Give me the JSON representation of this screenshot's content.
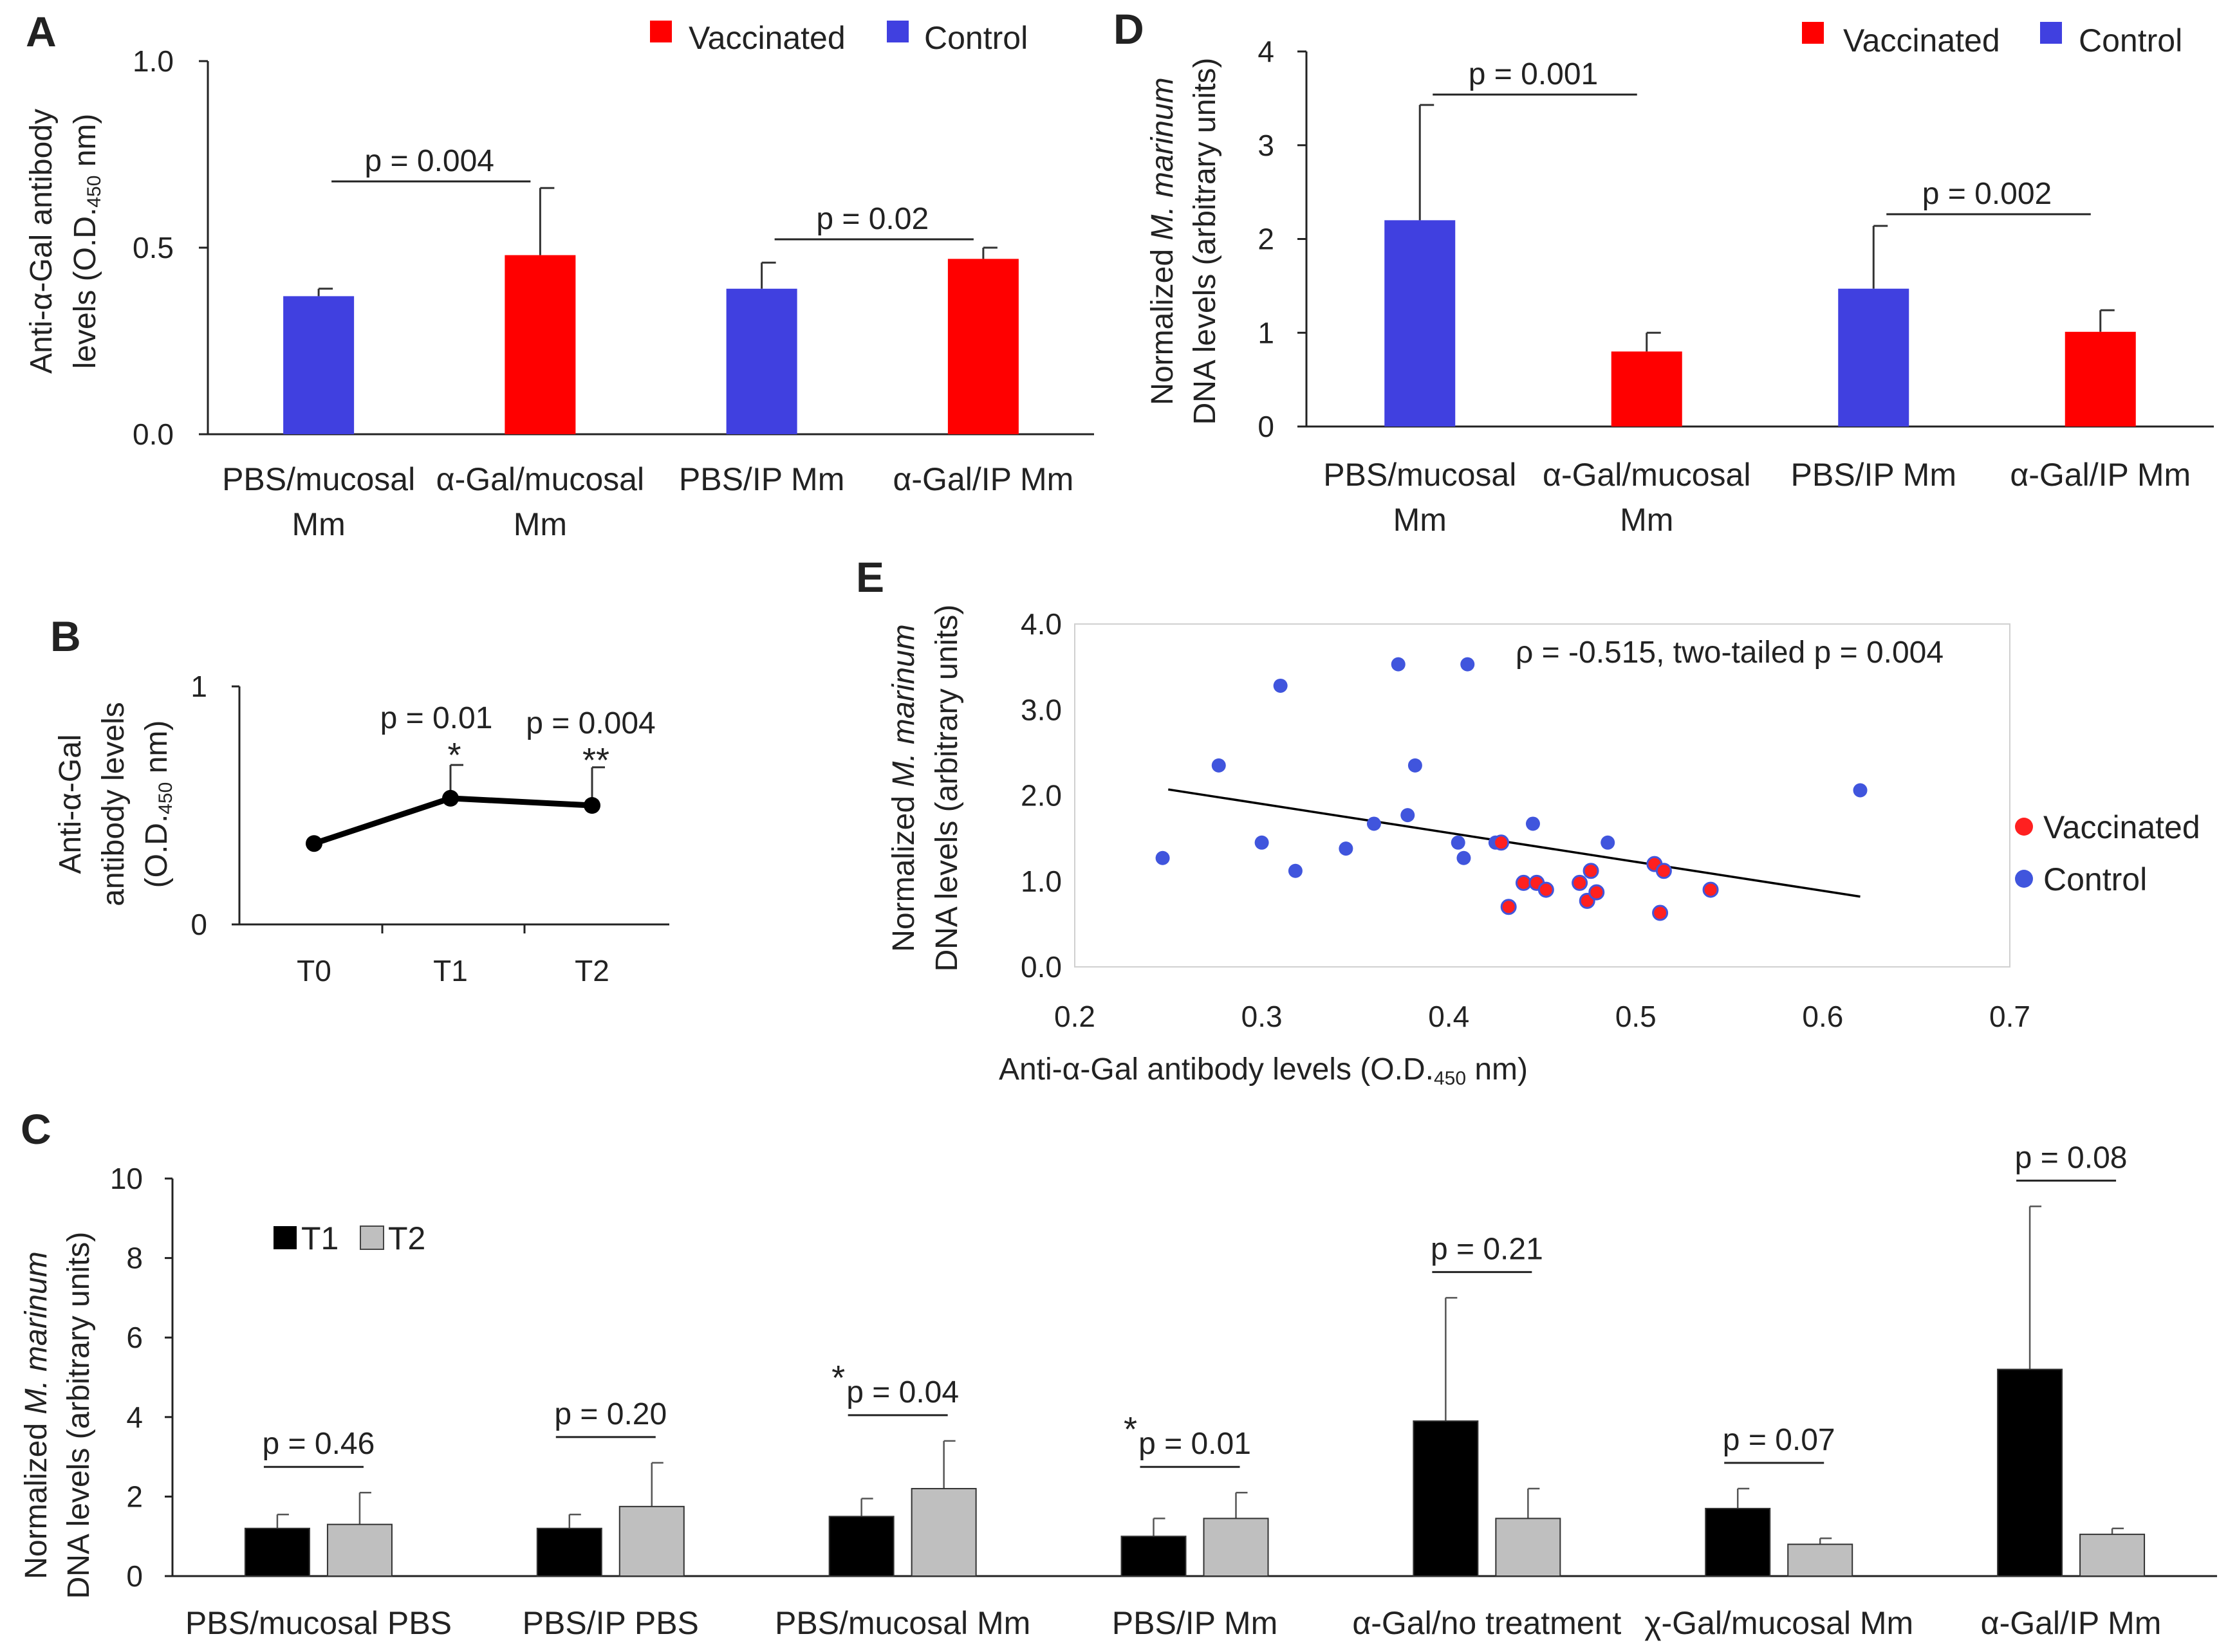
{
  "chart_data": [
    {
      "panel": "A",
      "type": "bar",
      "ylabel_line1": "Anti-α-Gal antibody",
      "ylabel_line2_pre": "levels (O.D.",
      "ylabel_line2_sub": "450",
      "ylabel_line2_post": " nm)",
      "ylim": [
        0,
        1.0
      ],
      "yticks": [
        "0.0",
        "0.5",
        "1.0"
      ],
      "legend": [
        {
          "label": "Vaccinated",
          "color": "#ff0000"
        },
        {
          "label": "Control",
          "color": "#4040e0"
        }
      ],
      "categories": [
        [
          "PBS/mucosal",
          "Mm"
        ],
        [
          "α-Gal/mucosal",
          "Mm"
        ],
        [
          "PBS/IP Mm"
        ],
        [
          "α-Gal/IP Mm"
        ]
      ],
      "values": [
        0.37,
        0.48,
        0.39,
        0.47
      ],
      "errors": [
        0.02,
        0.18,
        0.07,
        0.03
      ],
      "groups": [
        "Control",
        "Vaccinated",
        "Control",
        "Vaccinated"
      ],
      "comparisons": [
        {
          "label": "p = 0.004",
          "from": 0,
          "to": 1
        },
        {
          "label": "p = 0.02",
          "from": 2,
          "to": 3
        }
      ]
    },
    {
      "panel": "B",
      "type": "line",
      "ylabel_line1": "Anti-α-Gal",
      "ylabel_line2": "antibody levels",
      "ylabel_line3_pre": "(O.D.",
      "ylabel_line3_sub": "450",
      "ylabel_line3_post": " nm)",
      "ylim": [
        0,
        1
      ],
      "yticks": [
        "0",
        "1"
      ],
      "categories": [
        "T0",
        "T1",
        "T2"
      ],
      "values": [
        0.34,
        0.53,
        0.5
      ],
      "errors": [
        0.0,
        0.14,
        0.16
      ],
      "annotations": [
        {
          "label": "p = 0.01",
          "stars": "*"
        },
        {
          "label": "p = 0.004",
          "stars": "**"
        }
      ]
    },
    {
      "panel": "C",
      "type": "bar",
      "ylabel_line1_pre": "Normalized ",
      "ylabel_line1_italic": "M. marinum",
      "ylabel_line2": "DNA levels (arbitrary units)",
      "ylim": [
        0,
        10
      ],
      "yticks": [
        "0",
        "2",
        "4",
        "6",
        "8",
        "10"
      ],
      "legend": [
        {
          "label": "T1",
          "color": "#000000"
        },
        {
          "label": "T2",
          "color": "#bfbfbf"
        }
      ],
      "categories": [
        "PBS/mucosal PBS",
        "PBS/IP PBS",
        "PBS/mucosal Mm",
        "PBS/IP Mm",
        "α-Gal/no treatment",
        "χ-Gal/mucosal Mm",
        "α-Gal/IP Mm"
      ],
      "series": [
        {
          "name": "T1",
          "values": [
            1.2,
            1.2,
            1.5,
            1.0,
            3.9,
            1.7,
            5.2
          ],
          "errors": [
            0.35,
            0.35,
            0.45,
            0.45,
            3.1,
            0.5,
            4.1
          ]
        },
        {
          "name": "T2",
          "values": [
            1.3,
            1.75,
            2.2,
            1.45,
            1.45,
            0.8,
            1.05
          ],
          "errors": [
            0.8,
            1.1,
            1.2,
            0.65,
            0.75,
            0.15,
            0.15
          ]
        }
      ],
      "p_labels": [
        "p = 0.46",
        "p = 0.20",
        "p = 0.04",
        "p = 0.01",
        "p = 0.21",
        "p = 0.07",
        "p = 0.08"
      ],
      "stars": [
        "",
        "",
        "*",
        "*",
        "",
        "",
        ""
      ]
    },
    {
      "panel": "D",
      "type": "bar",
      "ylabel_line1_pre": "Normalized ",
      "ylabel_line1_italic": "M. marinum",
      "ylabel_line2": "DNA levels (arbitrary units)",
      "ylim": [
        0,
        4
      ],
      "yticks": [
        "0",
        "1",
        "2",
        "3",
        "4"
      ],
      "legend": [
        {
          "label": "Vaccinated",
          "color": "#ff0000"
        },
        {
          "label": "Control",
          "color": "#4040e0"
        }
      ],
      "categories": [
        [
          "PBS/mucosal",
          "Mm"
        ],
        [
          "α-Gal/mucosal",
          "Mm"
        ],
        [
          "PBS/IP Mm"
        ],
        [
          "α-Gal/IP Mm"
        ]
      ],
      "values": [
        2.2,
        0.8,
        1.47,
        1.01
      ],
      "errors": [
        1.23,
        0.2,
        0.67,
        0.23
      ],
      "groups": [
        "Control",
        "Vaccinated",
        "Control",
        "Vaccinated"
      ],
      "comparisons": [
        {
          "label": "p = 0.001",
          "from": 0,
          "to": 1
        },
        {
          "label": "p = 0.002",
          "from": 2,
          "to": 3
        }
      ]
    },
    {
      "panel": "E",
      "type": "scatter",
      "xlabel_pre": "Anti-α-Gal antibody levels (O.D.",
      "xlabel_sub": "450",
      "xlabel_post": " nm)",
      "ylabel_line1_pre": "Normalized ",
      "ylabel_line1_italic": "M. marinum",
      "ylabel_line2": "DNA levels (arbitrary units)",
      "xlim": [
        0.2,
        0.7
      ],
      "ylim": [
        0,
        4.0
      ],
      "xticks": [
        "0.2",
        "0.3",
        "0.4",
        "0.5",
        "0.6",
        "0.7"
      ],
      "yticks": [
        "0.0",
        "1.0",
        "2.0",
        "3.0",
        "4.0"
      ],
      "annotation": "ρ  = -0.515, two-tailed p = 0.004",
      "legend": [
        {
          "label": "Vaccinated",
          "color": "#ff2020"
        },
        {
          "label": "Control",
          "color": "#4055dd"
        }
      ],
      "trendline": {
        "x": [
          0.25,
          0.62
        ],
        "y": [
          2.07,
          0.82
        ]
      },
      "control_points": [
        [
          0.247,
          1.27
        ],
        [
          0.277,
          2.35
        ],
        [
          0.3,
          1.45
        ],
        [
          0.31,
          3.28
        ],
        [
          0.318,
          1.12
        ],
        [
          0.345,
          1.38
        ],
        [
          0.36,
          1.67
        ],
        [
          0.373,
          3.53
        ],
        [
          0.378,
          1.77
        ],
        [
          0.382,
          2.35
        ],
        [
          0.405,
          1.45
        ],
        [
          0.408,
          1.27
        ],
        [
          0.41,
          3.53
        ],
        [
          0.425,
          1.45
        ],
        [
          0.445,
          1.67
        ],
        [
          0.485,
          1.45
        ],
        [
          0.62,
          2.06
        ]
      ],
      "vaccinated_points": [
        [
          0.428,
          1.45
        ],
        [
          0.432,
          0.7
        ],
        [
          0.44,
          0.98
        ],
        [
          0.447,
          0.98
        ],
        [
          0.452,
          0.9
        ],
        [
          0.47,
          0.98
        ],
        [
          0.474,
          0.77
        ],
        [
          0.476,
          1.12
        ],
        [
          0.479,
          0.87
        ],
        [
          0.51,
          1.2
        ],
        [
          0.513,
          0.63
        ],
        [
          0.515,
          1.12
        ],
        [
          0.54,
          0.9
        ]
      ]
    }
  ]
}
